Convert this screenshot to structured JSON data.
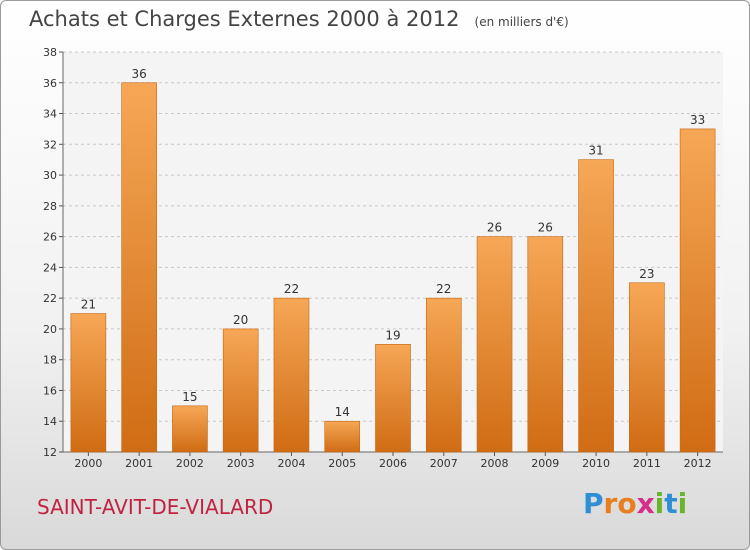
{
  "header": {
    "title": "Achats et Charges Externes 2000 à 2012",
    "unit": "(en milliers d'€)"
  },
  "footer": {
    "commune": "SAINT-AVIT-DE-VIALARD",
    "logo_letters": [
      "P",
      "r",
      "o",
      "x",
      "i",
      "t",
      "i"
    ],
    "logo_colors": [
      "#2f8fd6",
      "#e87f1e",
      "#e87f1e",
      "#d62f8a",
      "#6ab42d",
      "#2f8fd6",
      "#6ab42d"
    ]
  },
  "colors": {
    "bar_top": "#f6a756",
    "bar_bottom": "#d06c14",
    "commune": "#c0233f"
  },
  "chart_data": {
    "type": "bar",
    "categories": [
      "2000",
      "2001",
      "2002",
      "2003",
      "2004",
      "2005",
      "2006",
      "2007",
      "2008",
      "2009",
      "2010",
      "2011",
      "2012"
    ],
    "values": [
      21,
      36,
      15,
      20,
      22,
      14,
      19,
      22,
      26,
      26,
      31,
      23,
      33
    ],
    "title": "Achats et Charges Externes 2000 à 2012",
    "ylim": [
      12,
      38
    ],
    "yticks": [
      12,
      14,
      16,
      18,
      20,
      22,
      24,
      26,
      28,
      30,
      32,
      34,
      36,
      38
    ],
    "grid": true
  }
}
